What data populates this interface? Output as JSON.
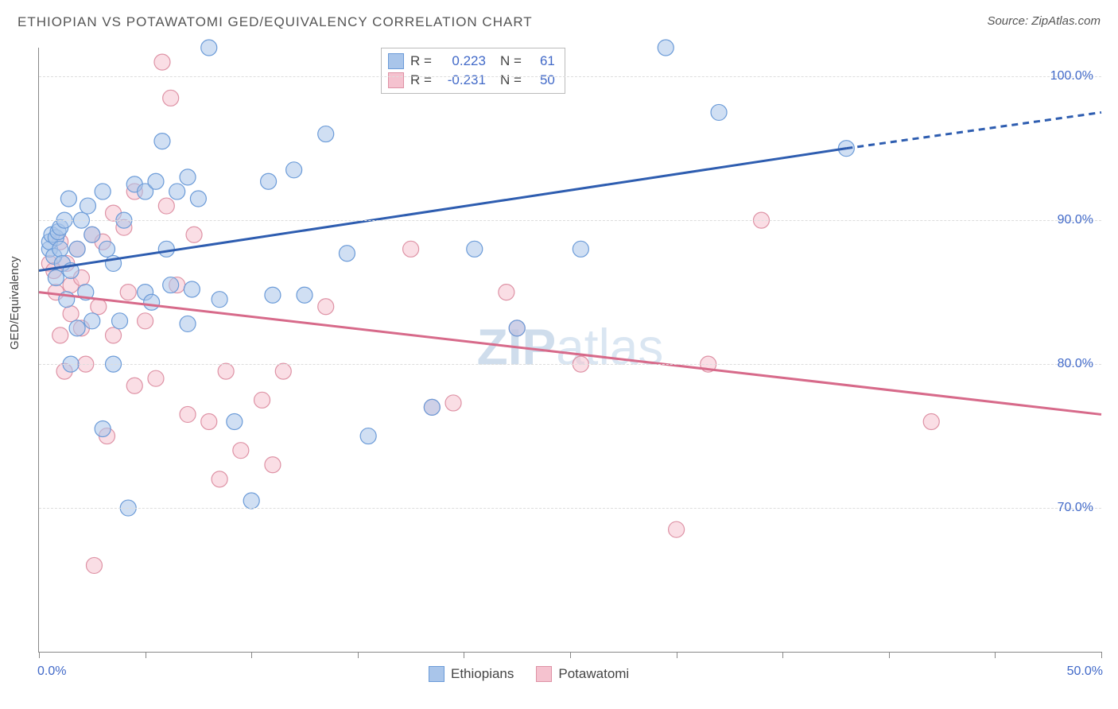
{
  "title": "ETHIOPIAN VS POTAWATOMI GED/EQUIVALENCY CORRELATION CHART",
  "source": "Source: ZipAtlas.com",
  "ylabel": "GED/Equivalency",
  "watermark_prefix": "ZIP",
  "watermark_suffix": "atlas",
  "chart": {
    "type": "scatter-with-trend",
    "xlim": [
      0,
      50
    ],
    "ylim": [
      60,
      102
    ],
    "x_ticks": [
      0,
      5,
      10,
      15,
      20,
      25,
      30,
      35,
      40,
      45,
      50
    ],
    "x_tick_labels": {
      "0": "0.0%",
      "50": "50.0%"
    },
    "y_grid": [
      70,
      80,
      90,
      100
    ],
    "y_grid_labels": [
      "70.0%",
      "80.0%",
      "90.0%",
      "100.0%"
    ],
    "colors": {
      "series1_fill": "#a9c5ea",
      "series1_stroke": "#6b9bd8",
      "series1_line": "#2e5db0",
      "series2_fill": "#f5c2cf",
      "series2_stroke": "#de92a5",
      "series2_line": "#d76a8a",
      "axis_text": "#4169c8",
      "grid": "#dddddd"
    },
    "legend_top": [
      {
        "swatch_fill": "#a9c5ea",
        "swatch_stroke": "#6b9bd8",
        "r_label": "R =",
        "r_val": "0.223",
        "n_label": "N =",
        "n_val": "61"
      },
      {
        "swatch_fill": "#f5c2cf",
        "swatch_stroke": "#de92a5",
        "r_label": "R =",
        "r_val": "-0.231",
        "n_label": "N =",
        "n_val": "50"
      }
    ],
    "legend_bottom": [
      {
        "swatch_fill": "#a9c5ea",
        "swatch_stroke": "#6b9bd8",
        "label": "Ethiopians"
      },
      {
        "swatch_fill": "#f5c2cf",
        "swatch_stroke": "#de92a5",
        "label": "Potawatomi"
      }
    ],
    "trend_lines": [
      {
        "series": "1",
        "x1": 0,
        "y1": 86.5,
        "x2": 38,
        "y2": 95,
        "x3": 50,
        "y3": 97.5,
        "dash_from": 38
      },
      {
        "series": "2",
        "x1": 0,
        "y1": 85,
        "x2": 50,
        "y2": 76.5
      }
    ],
    "marker_radius": 10,
    "series1_points": [
      [
        0.5,
        88
      ],
      [
        0.5,
        88.5
      ],
      [
        0.6,
        89
      ],
      [
        0.7,
        87.5
      ],
      [
        0.8,
        88.8
      ],
      [
        0.8,
        86
      ],
      [
        0.9,
        89.2
      ],
      [
        1.0,
        88
      ],
      [
        1.0,
        89.5
      ],
      [
        1.1,
        87
      ],
      [
        1.2,
        90
      ],
      [
        1.3,
        84.5
      ],
      [
        1.4,
        91.5
      ],
      [
        1.5,
        86.5
      ],
      [
        1.5,
        80
      ],
      [
        1.8,
        82.5
      ],
      [
        1.8,
        88
      ],
      [
        2.0,
        90
      ],
      [
        2.2,
        85
      ],
      [
        2.3,
        91
      ],
      [
        2.5,
        89
      ],
      [
        2.5,
        83
      ],
      [
        3.0,
        75.5
      ],
      [
        3.0,
        92
      ],
      [
        3.2,
        88
      ],
      [
        3.5,
        87
      ],
      [
        3.5,
        80
      ],
      [
        3.8,
        83
      ],
      [
        4.0,
        90
      ],
      [
        4.2,
        70
      ],
      [
        4.5,
        92.5
      ],
      [
        5.0,
        92
      ],
      [
        5.0,
        85
      ],
      [
        5.3,
        84.3
      ],
      [
        5.5,
        92.7
      ],
      [
        5.8,
        95.5
      ],
      [
        6.0,
        88
      ],
      [
        6.2,
        85.5
      ],
      [
        6.5,
        92
      ],
      [
        7.0,
        93
      ],
      [
        7.0,
        82.8
      ],
      [
        7.2,
        85.2
      ],
      [
        7.5,
        91.5
      ],
      [
        8.0,
        102
      ],
      [
        8.5,
        84.5
      ],
      [
        9.2,
        76
      ],
      [
        10.0,
        70.5
      ],
      [
        10.8,
        92.7
      ],
      [
        11.0,
        84.8
      ],
      [
        12.0,
        93.5
      ],
      [
        12.5,
        84.8
      ],
      [
        13.5,
        96
      ],
      [
        14.5,
        87.7
      ],
      [
        15.5,
        75
      ],
      [
        18.5,
        77
      ],
      [
        20.5,
        88
      ],
      [
        22.5,
        82.5
      ],
      [
        25.5,
        88
      ],
      [
        29.5,
        102
      ],
      [
        32.0,
        97.5
      ],
      [
        38.0,
        95
      ]
    ],
    "series2_points": [
      [
        0.5,
        87
      ],
      [
        0.7,
        86.5
      ],
      [
        0.8,
        85
      ],
      [
        1.0,
        88.5
      ],
      [
        1.0,
        82
      ],
      [
        1.2,
        79.5
      ],
      [
        1.3,
        87
      ],
      [
        1.5,
        85.5
      ],
      [
        1.5,
        83.5
      ],
      [
        1.8,
        88
      ],
      [
        2.0,
        82.5
      ],
      [
        2.0,
        86
      ],
      [
        2.2,
        80
      ],
      [
        2.5,
        89
      ],
      [
        2.6,
        66
      ],
      [
        2.8,
        84
      ],
      [
        3.0,
        88.5
      ],
      [
        3.2,
        75
      ],
      [
        3.5,
        82
      ],
      [
        3.5,
        90.5
      ],
      [
        4.0,
        89.5
      ],
      [
        4.2,
        85
      ],
      [
        4.5,
        92
      ],
      [
        4.5,
        78.5
      ],
      [
        5.0,
        83
      ],
      [
        5.5,
        79
      ],
      [
        5.8,
        101
      ],
      [
        6.0,
        91
      ],
      [
        6.2,
        98.5
      ],
      [
        6.5,
        85.5
      ],
      [
        7.0,
        76.5
      ],
      [
        7.3,
        89
      ],
      [
        8.0,
        76
      ],
      [
        8.5,
        72
      ],
      [
        8.8,
        79.5
      ],
      [
        9.5,
        74
      ],
      [
        10.5,
        77.5
      ],
      [
        11.0,
        73
      ],
      [
        11.5,
        79.5
      ],
      [
        13.5,
        84
      ],
      [
        17.5,
        88
      ],
      [
        18.5,
        77
      ],
      [
        19.5,
        77.3
      ],
      [
        22.0,
        85
      ],
      [
        22.5,
        82.5
      ],
      [
        25.5,
        80
      ],
      [
        30.0,
        68.5
      ],
      [
        34.0,
        90
      ],
      [
        42.0,
        76
      ],
      [
        31.5,
        80
      ]
    ]
  }
}
